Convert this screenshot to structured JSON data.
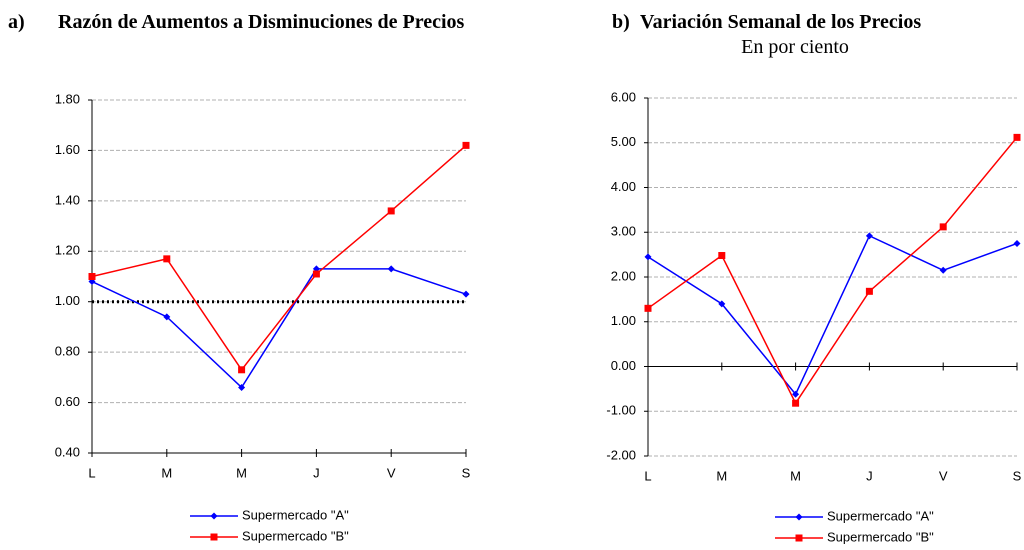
{
  "chart_data": [
    {
      "type": "line",
      "panel_label": "a)",
      "title": "Razón de Aumentos a Disminuciones de Precios",
      "categories": [
        "L",
        "M",
        "M",
        "J",
        "V",
        "S"
      ],
      "series": [
        {
          "name": "Supermercado \"A\"",
          "color": "#0000ff",
          "marker": "diamond",
          "values": [
            1.08,
            0.94,
            0.66,
            1.13,
            1.13,
            1.03
          ]
        },
        {
          "name": "Supermercado \"B\"",
          "color": "#ff0000",
          "marker": "square",
          "values": [
            1.1,
            1.17,
            0.73,
            1.11,
            1.36,
            1.62
          ]
        }
      ],
      "ylim": [
        0.4,
        1.8
      ],
      "yticks": [
        {
          "value": 0.4,
          "label": "0.40"
        },
        {
          "value": 0.6,
          "label": "0.60"
        },
        {
          "value": 0.8,
          "label": "0.80"
        },
        {
          "value": 1.0,
          "label": "1.00"
        },
        {
          "value": 1.2,
          "label": "1.20"
        },
        {
          "value": 1.4,
          "label": "1.40"
        },
        {
          "value": 1.6,
          "label": "1.60"
        },
        {
          "value": 1.8,
          "label": "1.80"
        }
      ],
      "grid": true,
      "reference_line": 1.0
    },
    {
      "type": "line",
      "panel_label": "b)",
      "title": "Variación Semanal de los Precios",
      "subtitle": "En por ciento",
      "categories": [
        "L",
        "M",
        "M",
        "J",
        "V",
        "S"
      ],
      "series": [
        {
          "name": "Supermercado \"A\"",
          "color": "#0000ff",
          "marker": "diamond",
          "values": [
            2.45,
            1.4,
            -0.62,
            2.92,
            2.15,
            2.75
          ]
        },
        {
          "name": "Supermercado \"B\"",
          "color": "#ff0000",
          "marker": "square",
          "values": [
            1.3,
            2.48,
            -0.82,
            1.68,
            3.12,
            5.12
          ]
        }
      ],
      "ylim": [
        -2,
        6
      ],
      "yticks": [
        {
          "value": -2,
          "label": "-2.00"
        },
        {
          "value": -1,
          "label": "-1.00"
        },
        {
          "value": 0,
          "label": "0.00"
        },
        {
          "value": 1,
          "label": "1.00"
        },
        {
          "value": 2,
          "label": "2.00"
        },
        {
          "value": 3,
          "label": "3.00"
        },
        {
          "value": 4,
          "label": "4.00"
        },
        {
          "value": 5,
          "label": "5.00"
        },
        {
          "value": 6,
          "label": "6.00"
        }
      ],
      "grid": true
    }
  ]
}
